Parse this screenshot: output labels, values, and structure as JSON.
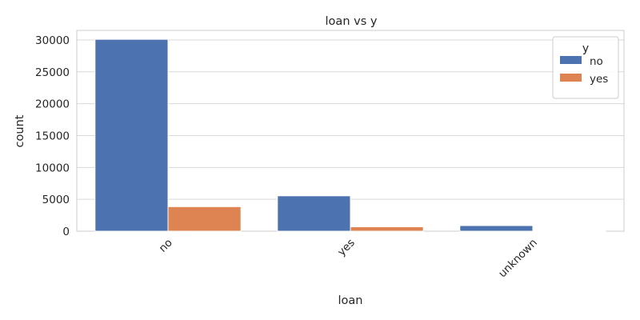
{
  "chart_data": {
    "type": "bar",
    "title": "loan vs y",
    "xlabel": "loan",
    "ylabel": "count",
    "categories": [
      "no",
      "yes",
      "unknown"
    ],
    "series": [
      {
        "name": "no",
        "color": "#4c72b0",
        "values": [
          30100,
          5550,
          880
        ]
      },
      {
        "name": "yes",
        "color": "#dd8452",
        "values": [
          3850,
          690,
          110
        ]
      }
    ],
    "ylim": [
      0,
      31500
    ],
    "yticks": [
      0,
      5000,
      10000,
      15000,
      20000,
      25000,
      30000
    ],
    "grid": true,
    "legend": {
      "title": "y",
      "placement": "top-right"
    }
  }
}
